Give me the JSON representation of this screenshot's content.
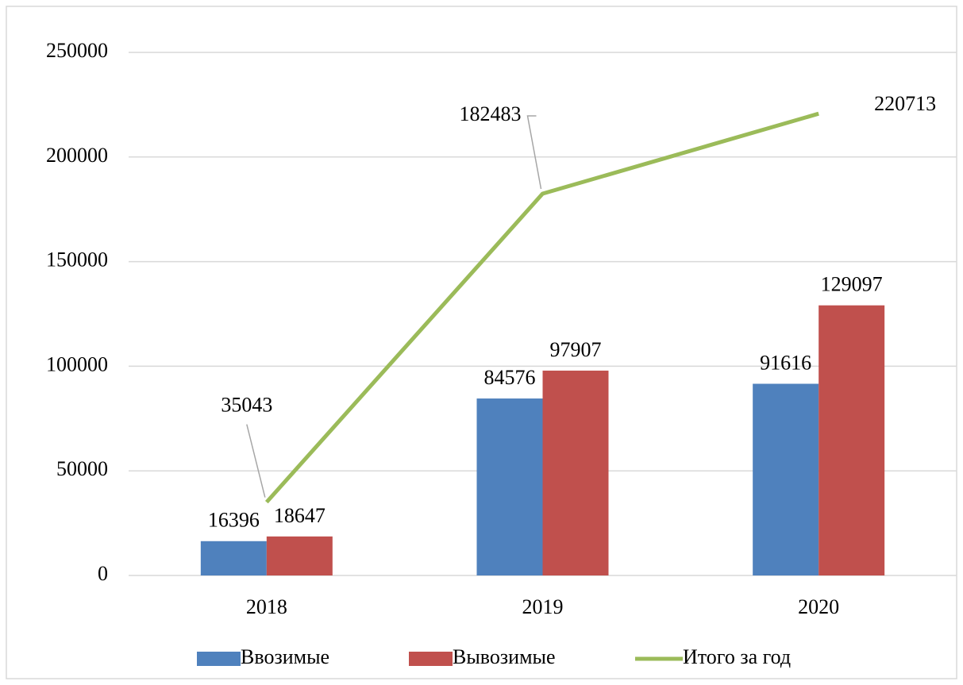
{
  "chart_data": {
    "type": "bar",
    "categories": [
      "2018",
      "2019",
      "2020"
    ],
    "series": [
      {
        "name": "Ввозимые",
        "color": "#4f81bd",
        "values": [
          16396,
          84576,
          91616
        ]
      },
      {
        "name": "Вывозимые",
        "color": "#c0504d",
        "values": [
          18647,
          97907,
          129097
        ]
      },
      {
        "name": "Итого за год",
        "color": "#9bbb59",
        "type": "line",
        "values": [
          35043,
          182483,
          220713
        ]
      }
    ],
    "ylim": [
      0,
      250000
    ],
    "yticks": [
      0,
      50000,
      100000,
      150000,
      200000,
      250000
    ],
    "grid": true,
    "legend": "bottom"
  }
}
